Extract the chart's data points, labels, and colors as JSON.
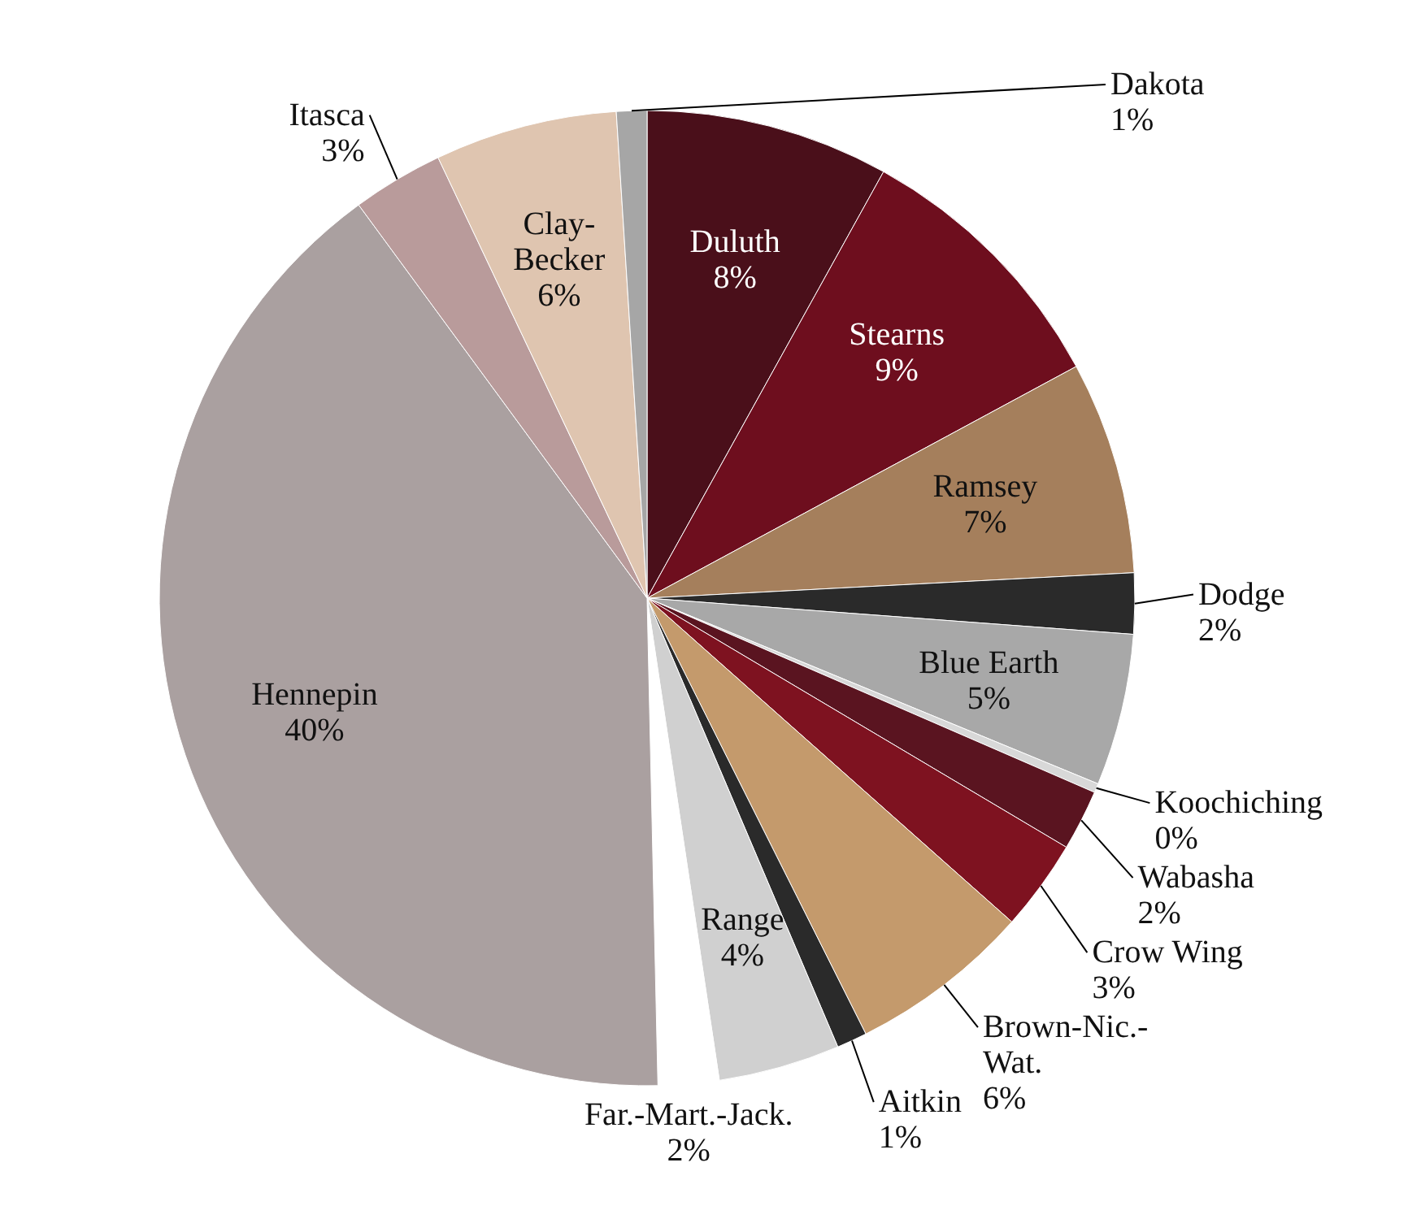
{
  "chart_data": {
    "type": "pie",
    "categories": [
      "Duluth",
      "Stearns",
      "Ramsey",
      "Dodge",
      "Blue Earth",
      "Koochiching",
      "Wabasha",
      "Crow Wing",
      "Brown-Nic.-Wat.",
      "Aitkin",
      "Range",
      "Far.-Mart.-Jack.",
      "Hennepin",
      "Itasca",
      "Clay-Becker",
      "Dakota"
    ],
    "values": [
      8,
      9,
      7,
      2,
      5,
      0.3,
      2,
      3,
      6,
      1,
      4,
      2,
      40,
      3,
      6,
      1
    ],
    "value_labels": [
      "8%",
      "9%",
      "7%",
      "2%",
      "5%",
      "0%",
      "2%",
      "3%",
      "6%",
      "1%",
      "4%",
      "2%",
      "40%",
      "3%",
      "6%",
      "1%"
    ],
    "colors": [
      "#4a0f1a",
      "#6e0e1e",
      "#a57f5c",
      "#2a2a2a",
      "#a8a8a8",
      "#d8d8d8",
      "#5a1420",
      "#7e1220",
      "#c49a6c",
      "#2a2a2a",
      "#d0d0d0",
      "#ffffff",
      "#aaa0a0",
      "#b99b9b",
      "#dfc5b0",
      "#a6a6a6"
    ]
  }
}
